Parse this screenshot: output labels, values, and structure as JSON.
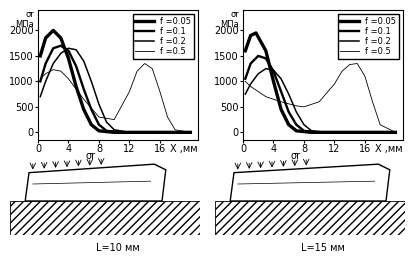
{
  "chart_data": [
    {
      "type": "line",
      "subtitle": "L=10 мм",
      "x_label": "X ,мм",
      "y_label": "σr\nМПа",
      "annotations": [
        "σr"
      ],
      "xlim": [
        0,
        21
      ],
      "xticks": [
        0,
        4,
        8,
        12,
        16
      ],
      "ylim": [
        -150,
        2400
      ],
      "yticks": [
        0,
        500,
        1000,
        1500,
        2000
      ],
      "legend": "upper right",
      "grid": false,
      "series": [
        {
          "name": "f =0.05",
          "color": "#000000",
          "x": [
            0.3,
            1,
            2,
            3,
            4,
            5,
            6,
            7,
            8,
            10,
            20
          ],
          "values": [
            1500,
            1850,
            2000,
            1850,
            1450,
            900,
            450,
            150,
            30,
            0,
            0
          ]
        },
        {
          "name": "f =0.1",
          "color": "#000000",
          "x": [
            0.3,
            1,
            2,
            3,
            4,
            5,
            6,
            7,
            8,
            9,
            11,
            20
          ],
          "values": [
            1000,
            1350,
            1650,
            1700,
            1600,
            1300,
            850,
            450,
            150,
            30,
            0,
            0
          ]
        },
        {
          "name": "f =0.2",
          "color": "#000000",
          "x": [
            0.3,
            1,
            2,
            3,
            4,
            5,
            6,
            7,
            8,
            9,
            10,
            12,
            20
          ],
          "values": [
            700,
            1000,
            1350,
            1550,
            1650,
            1620,
            1400,
            1000,
            550,
            200,
            50,
            0,
            0
          ]
        },
        {
          "name": "f =0.5",
          "color": "#000000",
          "x": [
            0.3,
            1,
            2,
            3,
            4,
            6,
            8,
            10,
            12,
            13,
            14,
            15,
            16,
            17,
            18,
            20
          ],
          "values": [
            1050,
            1150,
            1230,
            1200,
            1050,
            650,
            300,
            250,
            800,
            1200,
            1350,
            1250,
            800,
            300,
            50,
            0
          ]
        }
      ]
    },
    {
      "type": "line",
      "subtitle": "L=15 мм",
      "x_label": "X ,мм",
      "y_label": "σr\nМПа",
      "annotations": [
        "σr"
      ],
      "xlim": [
        0,
        21
      ],
      "xticks": [
        0,
        4,
        8,
        12,
        16
      ],
      "ylim": [
        -150,
        2400
      ],
      "yticks": [
        0,
        500,
        1000,
        1500,
        2000
      ],
      "legend": "upper right",
      "grid": false,
      "series": [
        {
          "name": "f =0.05",
          "color": "#000000",
          "x": [
            0.3,
            1,
            1.7,
            3,
            4,
            5,
            6,
            7,
            9,
            20
          ],
          "values": [
            1600,
            1900,
            1950,
            1600,
            1000,
            450,
            150,
            30,
            0,
            0
          ]
        },
        {
          "name": "f =0.1",
          "color": "#000000",
          "x": [
            0.3,
            1,
            2,
            3,
            4,
            5,
            6,
            7,
            8,
            10,
            20
          ],
          "values": [
            1050,
            1350,
            1500,
            1450,
            1200,
            800,
            400,
            150,
            30,
            0,
            0
          ]
        },
        {
          "name": "f =0.2",
          "color": "#000000",
          "x": [
            0.3,
            1,
            2,
            3,
            4,
            5,
            6,
            7,
            8,
            9,
            11,
            20
          ],
          "values": [
            750,
            950,
            1150,
            1250,
            1220,
            1050,
            750,
            400,
            150,
            30,
            0,
            0
          ]
        },
        {
          "name": "f =0.5",
          "color": "#000000",
          "x": [
            0.3,
            1,
            2,
            3,
            5,
            7,
            8,
            10,
            12,
            13,
            14,
            15,
            16,
            17,
            18,
            20
          ],
          "values": [
            1000,
            900,
            800,
            700,
            600,
            520,
            500,
            600,
            950,
            1200,
            1330,
            1350,
            1100,
            600,
            150,
            0
          ]
        }
      ]
    }
  ]
}
